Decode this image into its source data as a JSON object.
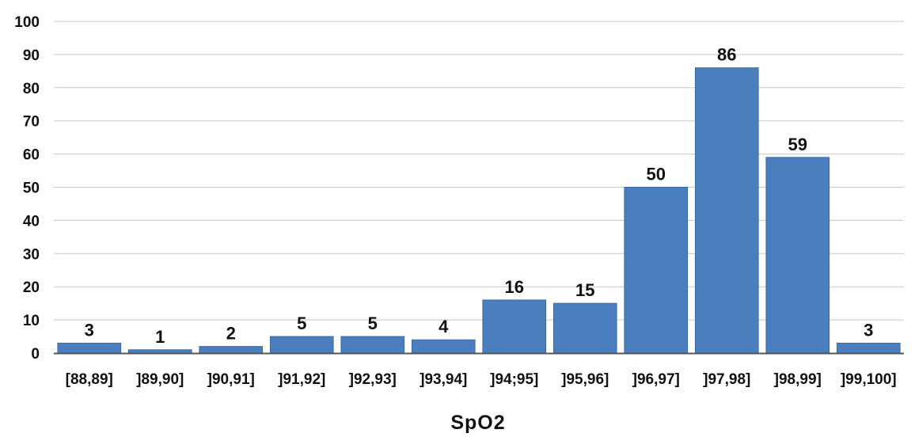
{
  "chart_data": {
    "type": "bar",
    "title": "",
    "xlabel": "SpO2",
    "ylabel": "",
    "ylim": [
      0,
      100
    ],
    "yticks": [
      0,
      10,
      20,
      30,
      40,
      50,
      60,
      70,
      80,
      90,
      100
    ],
    "grid": true,
    "legend": "none",
    "categories": [
      "[88,89]",
      "]89,90]",
      "]90,91]",
      "]91,92]",
      "]92,93]",
      "]93,94]",
      "]94;95]",
      "]95,96]",
      "]96,97]",
      "]97,98]",
      "]98,99]",
      "]99,100]"
    ],
    "values": [
      3,
      1,
      2,
      5,
      5,
      4,
      16,
      15,
      50,
      86,
      59,
      3
    ],
    "colors": {
      "bar": "#4a7ebf",
      "bar_edge": "#3a6aa5",
      "grid": "#c8c8c8",
      "axis": "#555555"
    }
  }
}
